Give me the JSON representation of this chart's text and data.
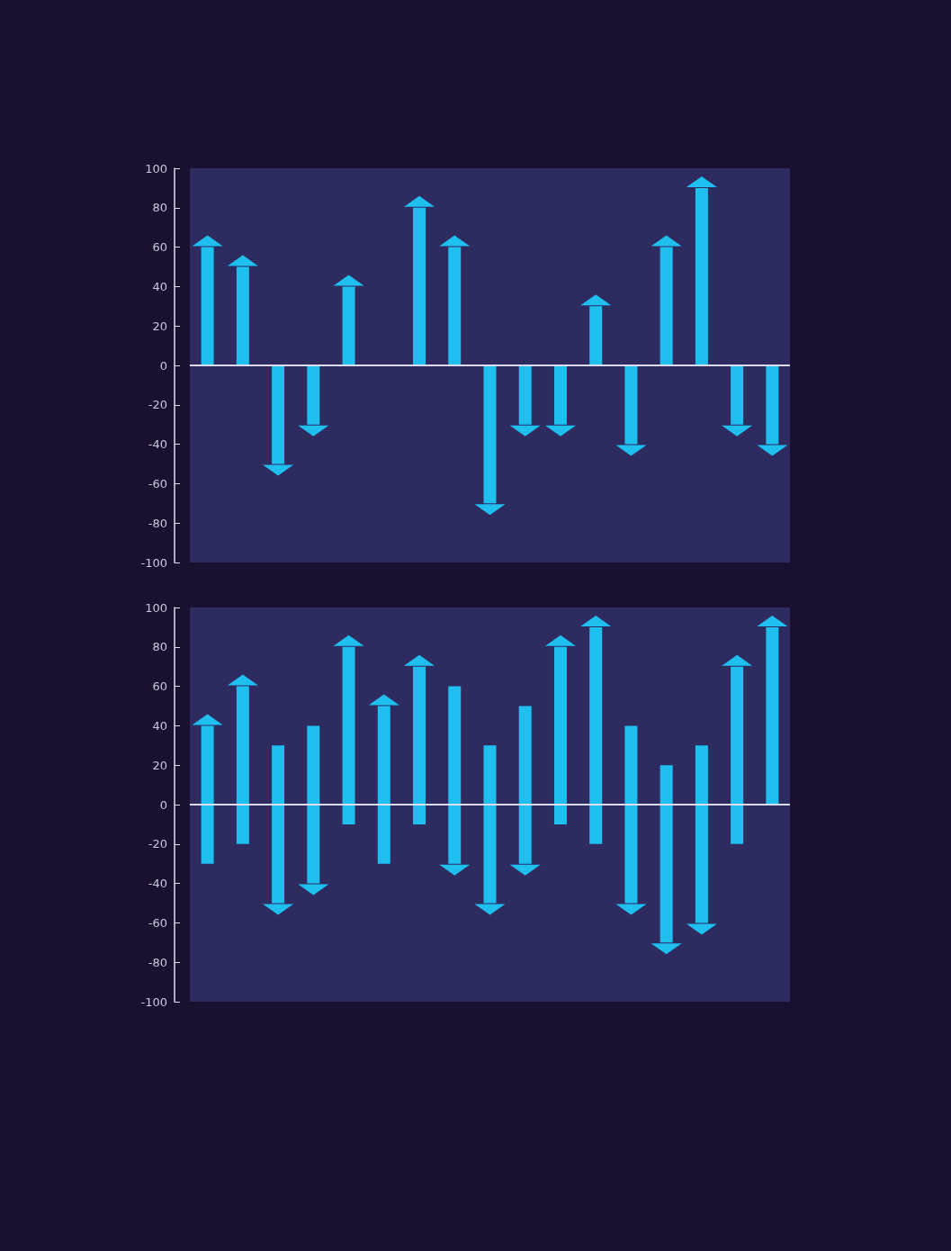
{
  "chart_data": [
    {
      "type": "bar",
      "categories": [
        null,
        null,
        null,
        null,
        null,
        null,
        null,
        null,
        null,
        null,
        null,
        null,
        null,
        null,
        null,
        null,
        null
      ],
      "values": [
        60,
        50,
        -50,
        -30,
        40,
        null,
        80,
        60,
        -70,
        -30,
        -30,
        30,
        -40,
        60,
        90,
        -30,
        -40
      ],
      "color": "#1fbff0",
      "ylim": [
        -100,
        100
      ],
      "yticks": [
        -100,
        -80,
        -60,
        -40,
        -20,
        0,
        20,
        40,
        60,
        80,
        100
      ],
      "tick_labels": "y",
      "ref_lines": [
        {
          "axis": "y",
          "value": 0,
          "color": "#dcdcec"
        }
      ]
    },
    {
      "type": "bar",
      "categories": [
        null,
        null,
        null,
        null,
        null,
        null,
        null,
        null,
        null,
        null,
        null,
        null,
        null,
        null,
        null,
        null,
        null
      ],
      "base": [
        -30,
        -20,
        30,
        40,
        -10,
        -30,
        -10,
        60,
        30,
        50,
        -10,
        -20,
        40,
        20,
        30,
        -20,
        0
      ],
      "values": [
        70,
        80,
        -80,
        -80,
        90,
        80,
        80,
        -90,
        -80,
        -80,
        90,
        110,
        -90,
        -90,
        -90,
        90,
        90
      ],
      "color": "#1fbff0",
      "ylim": [
        -100,
        100
      ],
      "yticks": [
        -100,
        -80,
        -60,
        -40,
        -20,
        0,
        20,
        40,
        60,
        80,
        100
      ],
      "tick_labels": "y",
      "ref_lines": [
        {
          "axis": "y",
          "value": 0,
          "color": "#dcdcec"
        }
      ]
    }
  ]
}
